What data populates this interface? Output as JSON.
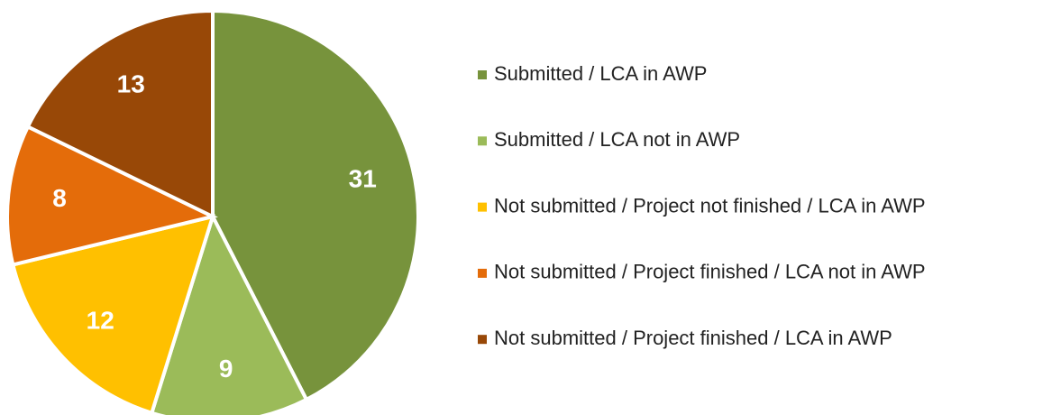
{
  "chart_data": {
    "type": "pie",
    "categories": [
      "Submitted / LCA in AWP",
      "Submitted / LCA not in AWP",
      "Not submitted / Project not finished / LCA in AWP",
      "Not submitted / Project finished / LCA not in AWP",
      "Not submitted / Project finished / LCA in AWP"
    ],
    "values": [
      31,
      9,
      12,
      8,
      13
    ],
    "colors": [
      "#77933c",
      "#9bbb59",
      "#ffc000",
      "#e46c0a",
      "#984807"
    ],
    "legend": "right"
  }
}
